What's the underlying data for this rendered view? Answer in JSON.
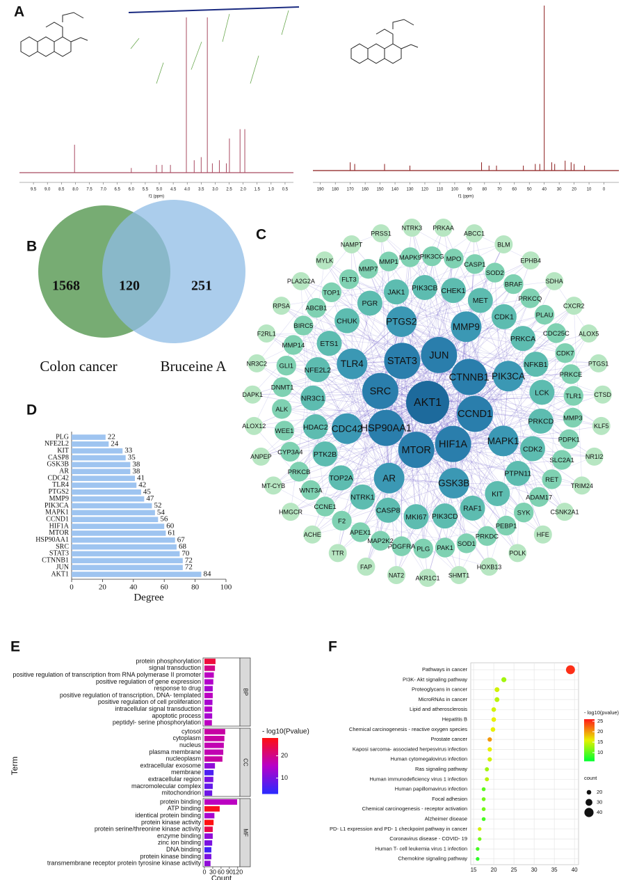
{
  "panel_labels": [
    "A",
    "B",
    "C",
    "D",
    "E",
    "F"
  ],
  "venn": {
    "left_label": "Colon cancer",
    "right_label": "Bruceine A",
    "left_only": 1568,
    "overlap": 120,
    "right_only": 251
  },
  "network": {
    "tiers": [
      [
        "AKT1"
      ],
      [
        "JUN",
        "CTNNB1",
        "CCND1",
        "HIF1A",
        "MTOR",
        "HSP90AA1",
        "SRC",
        "STAT3"
      ],
      [
        "MMP9",
        "PIK3CA",
        "MAPK1",
        "GSK3B",
        "AR",
        "CDC42",
        "TLR4",
        "PTGS2"
      ],
      [
        "CHEK1",
        "MET",
        "CDK1",
        "PRKCA",
        "NFKB1",
        "LCK",
        "PRKCD",
        "CDK2",
        "PTPN11",
        "KIT",
        "RAF1",
        "PIK3CD",
        "MKI67",
        "CASP8",
        "NTRK1",
        "TOP2A",
        "PTK2B",
        "HDAC2",
        "NR3C1",
        "NFE2L2",
        "ETS1",
        "CHUK",
        "PGR",
        "JAK1",
        "PIK3CB"
      ],
      [
        "MPO",
        "CASP1",
        "SOD2",
        "BRAF",
        "PRKCQ",
        "PLAU",
        "CDC25C",
        "CDK7",
        "PRKCE",
        "TLR1",
        "MMP3",
        "PDPK1",
        "SLC2A1",
        "RET",
        "ADAM17",
        "SYK",
        "PEBP1",
        "PRKDC",
        "SOD1",
        "PAK1",
        "PLG",
        "PDGFRA",
        "MAP2K2",
        "APEX1",
        "F2",
        "CCNE1",
        "WNT3A",
        "PRKCB",
        "CYP3A4",
        "WEE1",
        "ALK",
        "DNMT1",
        "GLI1",
        "MMP14",
        "BIRC5",
        "ABCB1",
        "TOP1",
        "FLT3",
        "MMP7",
        "MMP1",
        "MAPK9",
        "PIK3CG"
      ],
      [
        "ABCC1",
        "BLM",
        "EPHB4",
        "SDHA",
        "CXCR2",
        "ALOX5",
        "PTGS1",
        "CTSD",
        "KLF5",
        "NR1I2",
        "TRIM24",
        "CSNK2A1",
        "HFE",
        "POLK",
        "HOXB13",
        "SHMT1",
        "AKR1C1",
        "NAT2",
        "FAP",
        "TTR",
        "ACHE",
        "HMGCR",
        "MT-CYB",
        "ANPEP",
        "ALOX12",
        "DAPK1",
        "NR3C2",
        "F2RL1",
        "RPSA",
        "PLA2G2A",
        "MYLK",
        "NAMPT",
        "PRSS1",
        "NTRK3",
        "PRKAA"
      ]
    ]
  },
  "chart_data": [
    {
      "type": "spectrum",
      "xlabel": "f1 (ppm)",
      "xlim": [
        10,
        0.2
      ],
      "color": "#a84a60",
      "xticks": [
        {
          "value": 9.5,
          "label": "9.5"
        },
        {
          "value": 9,
          "label": "9.0"
        },
        {
          "value": 8.5,
          "label": "8.5"
        },
        {
          "value": 8,
          "label": "8.0"
        },
        {
          "value": 7.5,
          "label": "7.5"
        },
        {
          "value": 7,
          "label": "7.0"
        },
        {
          "value": 6.5,
          "label": "6.5"
        },
        {
          "value": 6,
          "label": "6.0"
        },
        {
          "value": 5.5,
          "label": "5.5"
        },
        {
          "value": 5,
          "label": "5.0"
        },
        {
          "value": 4.5,
          "label": "4.5"
        },
        {
          "value": 4,
          "label": "4.0"
        },
        {
          "value": 3.5,
          "label": "3.5"
        },
        {
          "value": 3,
          "label": "3.0"
        },
        {
          "value": 2.5,
          "label": "2.5"
        },
        {
          "value": 2,
          "label": "2.0"
        },
        {
          "value": 1.5,
          "label": "1.5"
        },
        {
          "value": 1,
          "label": "1.0"
        },
        {
          "value": 0.5,
          "label": "0.5"
        }
      ],
      "x": [
        8.03,
        6.0,
        5.1,
        4.9,
        4.6,
        4.03,
        3.75,
        3.5,
        3.28,
        3.1,
        2.85,
        2.6,
        2.49,
        2.11,
        1.94
      ],
      "values": [
        18,
        3,
        5,
        5,
        5,
        100,
        8,
        10,
        100,
        6,
        8,
        6,
        22,
        28,
        28
      ]
    },
    {
      "type": "spectrum",
      "xlabel": "f1 (ppm)",
      "xlim": [
        195,
        -10
      ],
      "color": "#8b1a1a",
      "xticks": [
        190,
        180,
        170,
        160,
        150,
        140,
        130,
        120,
        110,
        100,
        90,
        80,
        70,
        60,
        50,
        40,
        30,
        20,
        10,
        0
      ],
      "x": [
        170,
        167,
        147,
        130,
        82,
        77,
        72,
        54,
        46,
        43,
        40,
        35,
        33,
        26,
        22,
        20,
        13
      ],
      "values": [
        5,
        4,
        4,
        3,
        5,
        3,
        3,
        3,
        4,
        4,
        100,
        5,
        4,
        6,
        5,
        4,
        3
      ]
    },
    {
      "type": "barh",
      "xlabel": "Degree",
      "color": "#9ec4f0",
      "xlim": [
        0,
        100
      ],
      "xticks": [
        0,
        20,
        40,
        60,
        80,
        100
      ],
      "categories": [
        "PLG",
        "NFE2L2",
        "KIT",
        "CASP8",
        "GSK3B",
        "AR",
        "CDC42",
        "TLR4",
        "PTGS2",
        "MMP9",
        "PIK3CA",
        "MAPK1",
        "CCND1",
        "HIF1A",
        "MTOR",
        "HSP90AA1",
        "SRC",
        "STAT3",
        "CTNNB1",
        "JUN",
        "AKT1"
      ],
      "values": [
        22,
        24,
        33,
        35,
        38,
        38,
        41,
        42,
        45,
        47,
        52,
        54,
        56,
        60,
        61,
        67,
        68,
        70,
        72,
        72,
        84
      ]
    },
    {
      "type": "facet_barh",
      "ylabel": "Term",
      "xlabel": "Count",
      "xlim": [
        -5,
        128
      ],
      "xticks": [
        0,
        30,
        60,
        90,
        120
      ],
      "facets": [
        {
          "name": "BP",
          "categories": [
            "protein phosphorylation",
            "signal transduction",
            "positive regulation of transcription from RNA polymerase II promoter",
            "positive regulation of gene expression",
            "response to drug",
            "positive regulation of transcription, DNA- templated",
            "positive regulation of cell proliferation",
            "intracellular signal transduction",
            "apoptotic process",
            "peptidyl- serine phosphorylation"
          ],
          "values": [
            40,
            38,
            34,
            32,
            30,
            30,
            29,
            28,
            28,
            27
          ],
          "color_values": [
            25,
            20,
            16,
            15,
            14,
            16,
            14,
            15,
            14,
            16
          ]
        },
        {
          "name": "CC",
          "categories": [
            "cytosol",
            "cytoplasm",
            "nucleus",
            "plasma membrane",
            "nucleoplasm",
            "extracellular exosome",
            "membrane",
            "extracellular region",
            "macromolecular complex",
            "mitochondrion"
          ],
          "values": [
            75,
            72,
            70,
            68,
            65,
            38,
            33,
            32,
            30,
            28
          ],
          "color_values": [
            18,
            18,
            17,
            17,
            18,
            12,
            6,
            10,
            8,
            9
          ]
        },
        {
          "name": "MF",
          "categories": [
            "protein binding",
            "ATP binding",
            "identical protein binding",
            "protein kinase activity",
            "protein serine/threonine kinase activity",
            "enzyme binding",
            "zinc ion binding",
            "DNA binding",
            "protein kinase binding",
            "transmembrane receptor protein tyrosine kinase activity"
          ],
          "values": [
            118,
            55,
            36,
            33,
            30,
            30,
            28,
            25,
            25,
            22
          ],
          "color_values": [
            16,
            27,
            14,
            28,
            24,
            12,
            10,
            5,
            10,
            12
          ]
        }
      ],
      "colorbar": {
        "title": "- log10(Pvalue)",
        "lim": [
          3,
          28
        ],
        "ticks": [
          10,
          20
        ],
        "colors": [
          "#2a2aff",
          "#b800c8",
          "#ff1010"
        ]
      }
    },
    {
      "type": "dot",
      "xlim": [
        14.3,
        41
      ],
      "xticks": [
        15,
        20,
        25,
        30,
        35,
        40
      ],
      "categories": [
        "Pathways in cancer",
        "PI3K- Akt signaling pathway",
        "Proteoglycans in cancer",
        "MicroRNAs in cancer",
        "Lipid and atherosclerosis",
        "Hepatitis B",
        "Chemical carcinogenesis -  reactive oxygen species",
        "Prostate cancer",
        "Kaposi sarcoma- associated herpesvirus infection",
        "Human cytomegalovirus infection",
        "Ras signaling pathway",
        "Human immunodeficiency virus 1 infection",
        "Human papillomavirus infection",
        "Focal adhesion",
        "Chemical carcinogenesis -  receptor activation",
        "Alzheimer disease",
        "PD- L1 expression and PD- 1 checkpoint pathway in cancer",
        "Coronavirus disease -  COVID- 19",
        "Human T- cell leukemia virus 1 infection",
        "Chemokine signaling pathway"
      ],
      "x": [
        39,
        22.5,
        20.8,
        20.8,
        20,
        20,
        19.8,
        19,
        19,
        19,
        18.3,
        18.3,
        17.5,
        17.5,
        17.5,
        17.5,
        16.5,
        16.5,
        16,
        16
      ],
      "sizes": [
        39,
        22,
        21,
        21,
        20,
        20,
        20,
        19,
        19,
        19,
        18,
        18,
        17,
        17,
        17,
        17,
        16,
        16,
        16,
        16
      ],
      "color_values": [
        25,
        13,
        15,
        14,
        15,
        16,
        16,
        20,
        16,
        15,
        13,
        14,
        10,
        11,
        11,
        9,
        15,
        11,
        9,
        8
      ],
      "colorbar": {
        "title": "- log10(pvalue)",
        "lim": [
          6,
          26
        ],
        "ticks": [
          10,
          15,
          20,
          25
        ],
        "colors": [
          "#00ff30",
          "#e8f000",
          "#ff1a1a"
        ]
      },
      "size_legend": {
        "title": "count",
        "values": [
          20,
          30,
          40
        ]
      }
    }
  ]
}
